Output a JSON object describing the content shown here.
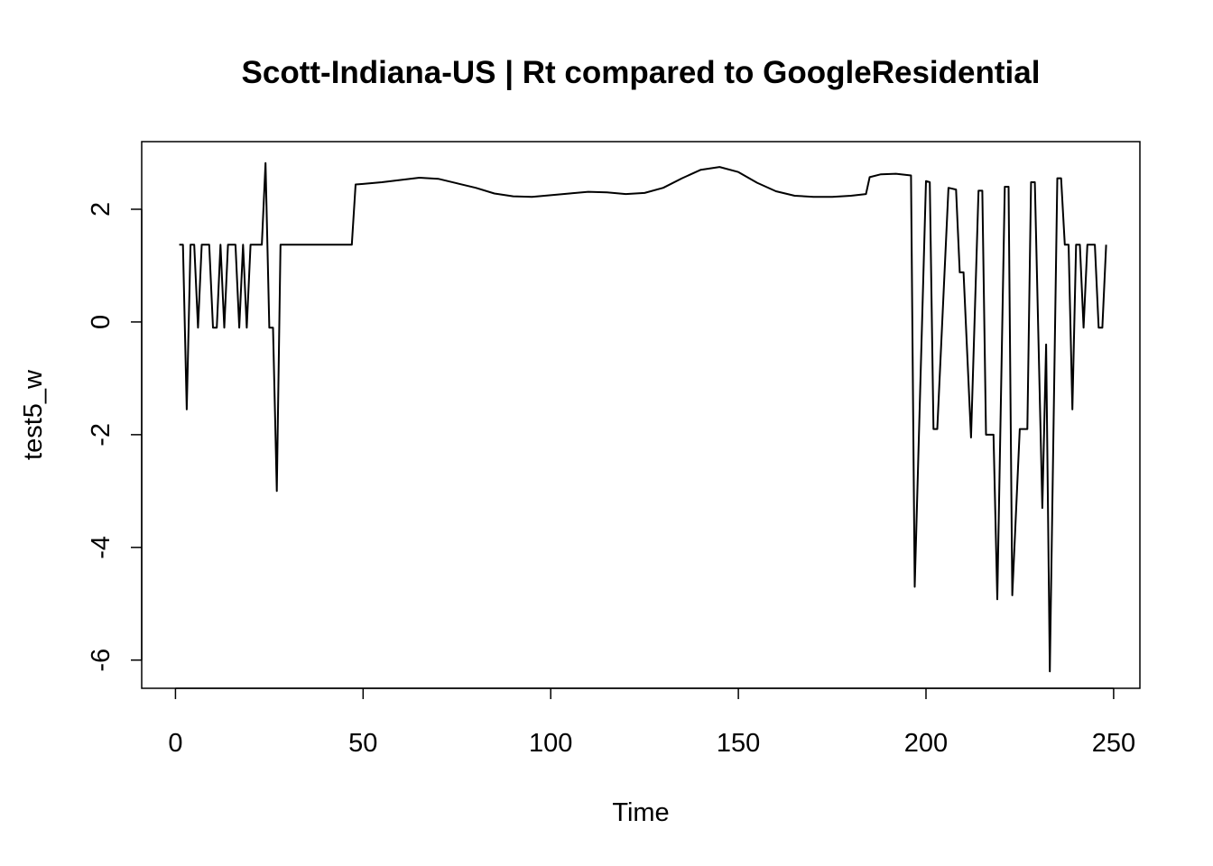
{
  "chart_data": {
    "type": "line",
    "title": "Scott-Indiana-US | Rt compared to GoogleResidential",
    "xlabel": "Time",
    "ylabel": "test5_w",
    "xlim": [
      -9,
      257
    ],
    "ylim": [
      -6.5,
      3.2
    ],
    "x_ticks": [
      0,
      50,
      100,
      150,
      200,
      250
    ],
    "y_ticks": [
      -6,
      -4,
      -2,
      0,
      2
    ],
    "grid": false,
    "legend": "none",
    "series": [
      {
        "color": "#000000",
        "points": [
          [
            1,
            1.37
          ],
          [
            2,
            1.37
          ],
          [
            3,
            -1.55
          ],
          [
            4,
            1.37
          ],
          [
            5,
            1.37
          ],
          [
            6,
            -0.1
          ],
          [
            7,
            1.37
          ],
          [
            8,
            1.37
          ],
          [
            9,
            1.37
          ],
          [
            10,
            -0.1
          ],
          [
            11,
            -0.1
          ],
          [
            12,
            1.37
          ],
          [
            13,
            -0.1
          ],
          [
            14,
            1.37
          ],
          [
            15,
            1.37
          ],
          [
            16,
            1.37
          ],
          [
            17,
            -0.1
          ],
          [
            18,
            1.37
          ],
          [
            19,
            -0.1
          ],
          [
            20,
            1.37
          ],
          [
            21,
            1.37
          ],
          [
            22,
            1.37
          ],
          [
            23,
            1.37
          ],
          [
            24,
            2.82
          ],
          [
            25,
            -0.1
          ],
          [
            26,
            -0.1
          ],
          [
            27,
            -3.0
          ],
          [
            28,
            1.37
          ],
          [
            30,
            1.37
          ],
          [
            35,
            1.37
          ],
          [
            40,
            1.37
          ],
          [
            45,
            1.37
          ],
          [
            47,
            1.37
          ],
          [
            48,
            2.44
          ],
          [
            50,
            2.45
          ],
          [
            55,
            2.48
          ],
          [
            60,
            2.52
          ],
          [
            65,
            2.56
          ],
          [
            70,
            2.54
          ],
          [
            75,
            2.46
          ],
          [
            80,
            2.38
          ],
          [
            85,
            2.28
          ],
          [
            90,
            2.23
          ],
          [
            95,
            2.22
          ],
          [
            100,
            2.25
          ],
          [
            105,
            2.28
          ],
          [
            110,
            2.31
          ],
          [
            115,
            2.3
          ],
          [
            120,
            2.27
          ],
          [
            125,
            2.29
          ],
          [
            130,
            2.38
          ],
          [
            135,
            2.55
          ],
          [
            140,
            2.7
          ],
          [
            145,
            2.75
          ],
          [
            150,
            2.66
          ],
          [
            155,
            2.47
          ],
          [
            160,
            2.32
          ],
          [
            165,
            2.24
          ],
          [
            170,
            2.22
          ],
          [
            175,
            2.22
          ],
          [
            180,
            2.24
          ],
          [
            184,
            2.27
          ],
          [
            185,
            2.57
          ],
          [
            188,
            2.62
          ],
          [
            192,
            2.63
          ],
          [
            196,
            2.6
          ],
          [
            197,
            -4.7
          ],
          [
            200,
            2.5
          ],
          [
            201,
            2.48
          ],
          [
            202,
            -1.9
          ],
          [
            203,
            -1.9
          ],
          [
            206,
            2.38
          ],
          [
            208,
            2.35
          ],
          [
            209,
            0.88
          ],
          [
            210,
            0.88
          ],
          [
            212,
            -2.05
          ],
          [
            214,
            2.33
          ],
          [
            215,
            2.33
          ],
          [
            216,
            -2.0
          ],
          [
            218,
            -2.0
          ],
          [
            219,
            -4.92
          ],
          [
            221,
            2.4
          ],
          [
            222,
            2.4
          ],
          [
            223,
            -4.85
          ],
          [
            225,
            -1.9
          ],
          [
            227,
            -1.9
          ],
          [
            228,
            2.48
          ],
          [
            229,
            2.48
          ],
          [
            231,
            -3.3
          ],
          [
            232,
            -0.4
          ],
          [
            233,
            -6.2
          ],
          [
            235,
            2.55
          ],
          [
            236,
            2.55
          ],
          [
            237,
            1.37
          ],
          [
            238,
            1.37
          ],
          [
            239,
            -1.55
          ],
          [
            240,
            1.37
          ],
          [
            241,
            1.37
          ],
          [
            242,
            -0.1
          ],
          [
            243,
            1.37
          ],
          [
            244,
            1.37
          ],
          [
            245,
            1.37
          ],
          [
            246,
            -0.1
          ],
          [
            247,
            -0.1
          ],
          [
            248,
            1.37
          ]
        ]
      }
    ]
  }
}
